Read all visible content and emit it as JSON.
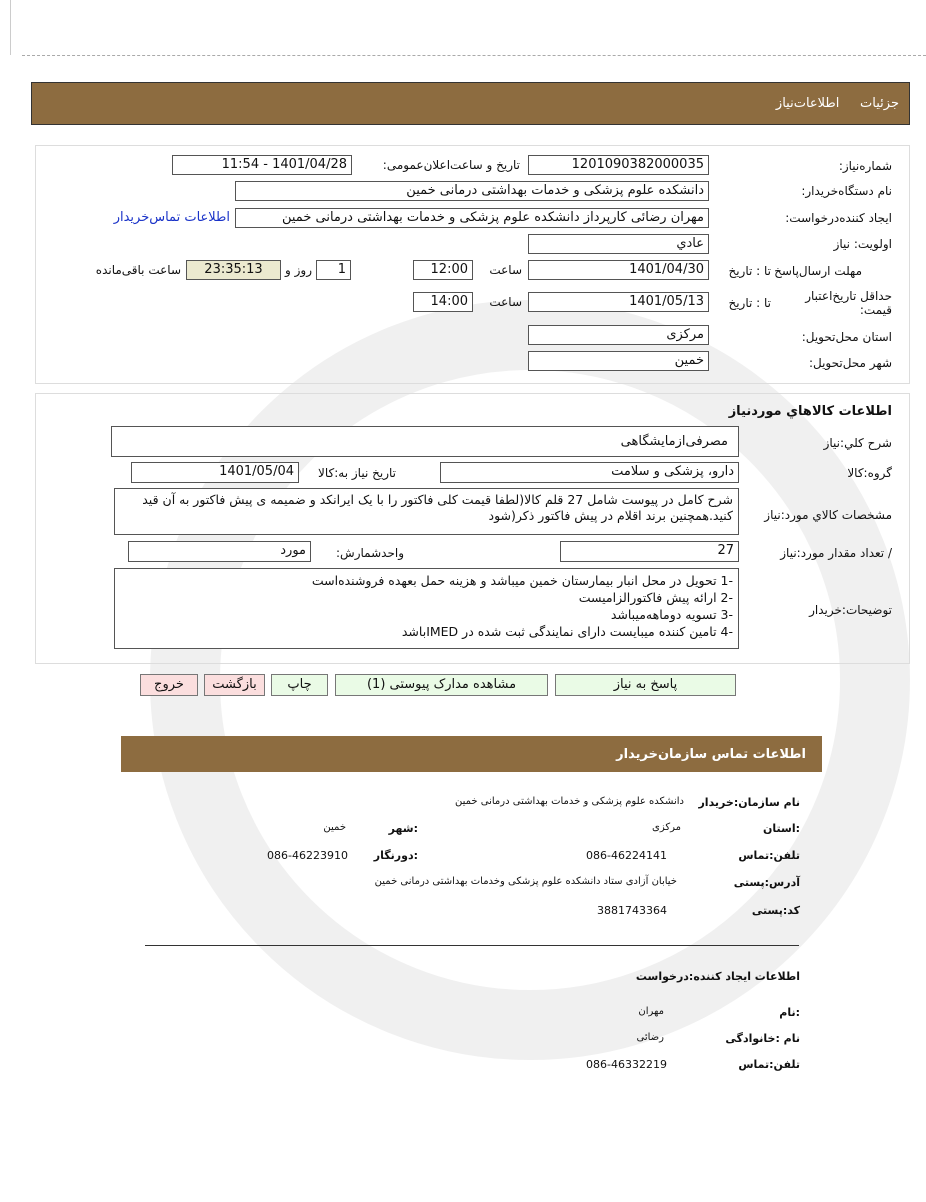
{
  "header": {
    "tab1": "جزئیات",
    "tab2": "اطلاعات‌نیاز"
  },
  "need": {
    "number_label": "شماره‌نیاز:",
    "number": "1201090382000035",
    "announce_label": "تاریخ و ساعت‌اعلان‌عمومی:",
    "announce": "1401/04/28 - 11:54",
    "buyer_label": "نام دستگاه‌خریدار:",
    "buyer": "دانشکده علوم پزشکی و خدمات بهداشتی  درمانی خمین",
    "creator_label": "ایجاد کننده‌درخواست:",
    "creator": "مهران  رضائی کارپرداز دانشکده علوم پزشکی و خدمات بهداشتی  درمانی خمین",
    "contact_link": "اطلاعات تماس‌خریدار",
    "priority_label": "اولویت: نیاز",
    "priority": "عادي",
    "deadline_label": "مهلت ارسال‌پاسخ",
    "to_date": "تا : تاریخ",
    "deadline_date": "1401/04/30",
    "time_label": "ساعت",
    "deadline_time": "12:00",
    "days": "1",
    "days_label": "روز و",
    "remaining": "23:35:13",
    "remaining_label": "ساعت باقی‌مانده",
    "validity_label": "حداقل تاریخ‌اعتبار قیمت:",
    "validity_date": "1401/05/13",
    "validity_time": "14:00",
    "province_label": "استان محل‌تحویل:",
    "province": "مرکزی",
    "city_label": "شهر محل‌تحویل:",
    "city": "خمین"
  },
  "goods": {
    "title": "اطلاعات کالاهاي موردنیاز",
    "desc_label": "شرح کلي:نیاز",
    "desc": "مصرفی‌ازمایشگاهی",
    "group_label": "گروه‌:کالا",
    "group": "دارو، پزشکی و سلامت",
    "need_date_label": "تاریخ نیاز به‌:کالا",
    "need_date": "1401/05/04",
    "spec_label": "مشخصات کالاي مورد:نیاز",
    "spec": "شرح کامل در پیوست شامل 27 قلم کالا(لطفا قیمت کلی فاکتور را با یک ایرانکد و ضمیمه ی پیش فاکتور به آن قید کنید.همچنین برند اقلام در پیش فاکتور ذکر(شود",
    "qty_label": "/ تعداد مقدار مورد:نیاز",
    "qty": "27",
    "unit_label": "واحد‌شمارش:",
    "unit": "مورد",
    "notes_label": "توضیحات:خریدار",
    "notes": [
      "-1 تحویل در محل انبار بیمارستان خمین میباشد و هزینه حمل بعهده فروشنده‌است",
      "-2 ارائه پیش فاکتورالزامیست",
      "-3 تسویه دوماهه‌میباشد",
      "-4 تامین کننده میبایست دارای نمایندگی ثبت شده در IMEDباشد"
    ]
  },
  "buttons": {
    "reply": "پاسخ به نیاز",
    "docs": "مشاهده مدارک پیوستی (1)",
    "print": "چاپ",
    "back": "بازگشت",
    "exit": "خروج"
  },
  "contact": {
    "title": "اطلاعات  تماس سازمان‌خریدار",
    "org_label": "نام سازمان:خریدار",
    "org": "دانشکده علوم پزشکی و خدمات بهداشتی درمانی خمین",
    "province_label": ":استان",
    "province": "مرکزی",
    "city_label": ":شهر",
    "city": "خمین",
    "phone_label": "تلفن:تماس",
    "phone": "086-46224141",
    "fax_label": ":دورنگار",
    "fax": "086-46223910",
    "address_label": "آدرس:پستی",
    "address": "خیابان آزادی ستاد دانشکده علوم پزشکی وخدمات بهداشتی درمانی خمین",
    "postal_label": "کد:پستی",
    "postal": "3881743364",
    "creator_title": "اطلاعات ایجاد کننده:درخواست",
    "name_label": ":نام",
    "name": "مهران",
    "family_label": "نام :خانوادگی",
    "family": "رضائی",
    "cphone_label": "تلفن:تماس",
    "cphone": "086-46332219"
  }
}
